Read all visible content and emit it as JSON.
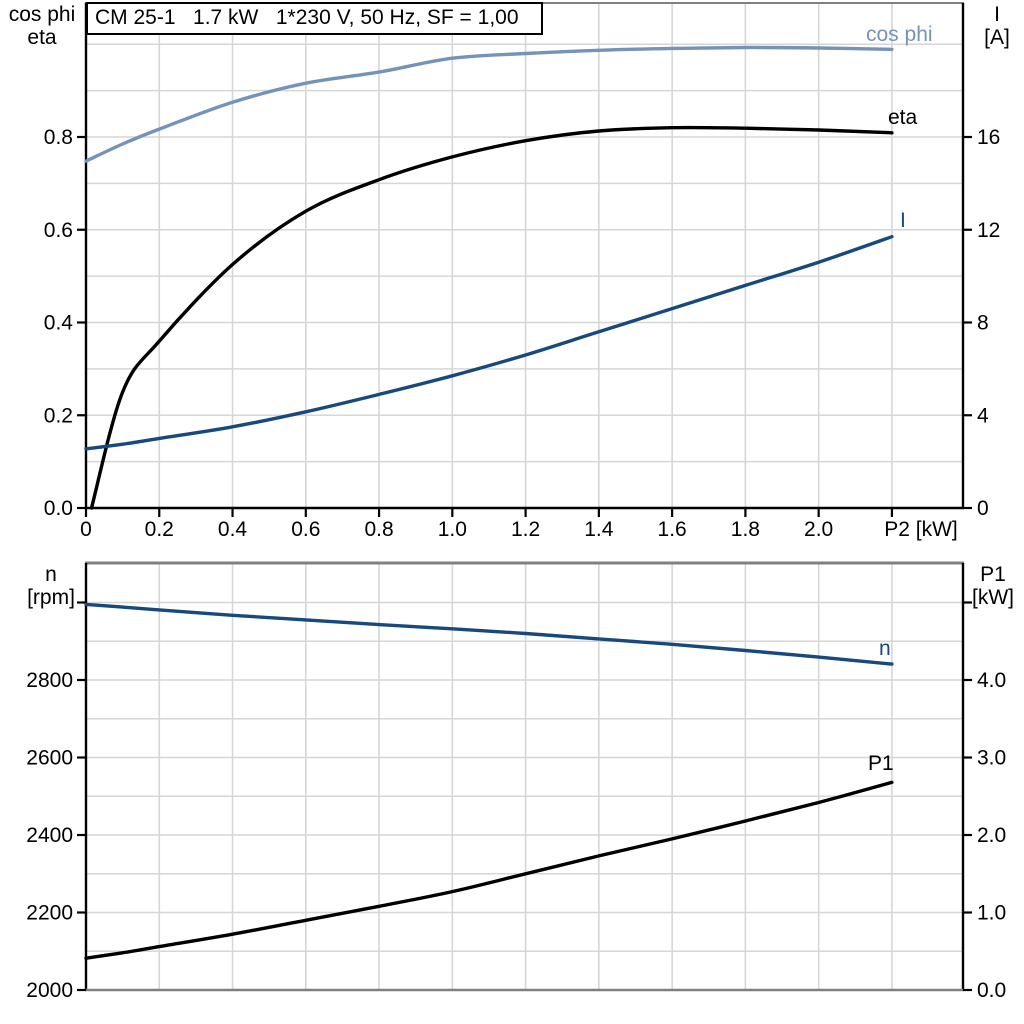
{
  "title": "CM 25-1   1.7 kW   1*230 V, 50 Hz, SF = 1,00",
  "colors": {
    "cos_phi_blue": "#7593B9",
    "dark_blue": "#17497D",
    "curve_black": "#000000",
    "gridline": "#D6D6D6",
    "frame_gray": "#808080"
  },
  "chart_data": [
    {
      "type": "line",
      "title": "CM 25-1   1.7 kW   1*230 V, 50 Hz, SF = 1,00",
      "x_label": "P2 [kW]",
      "x_ticks": {
        "values": [
          0,
          0.2,
          0.4,
          0.6,
          0.8,
          1.0,
          1.2,
          1.4,
          1.6,
          1.8,
          2.0
        ],
        "labels": [
          "0",
          "0.2",
          "0.4",
          "0.6",
          "0.8",
          "1.0",
          "1.2",
          "1.4",
          "1.6",
          "1.8",
          "2.0"
        ]
      },
      "left_axis": {
        "title_lines": [
          "cos phi",
          "eta"
        ],
        "tick_values": [
          0,
          0.2,
          0.4,
          0.6,
          0.8
        ],
        "tick_labels": [
          "0.0",
          "0.2",
          "0.4",
          "0.6",
          "0.8"
        ],
        "range": [
          0,
          1.089
        ],
        "grid_step": 0.1
      },
      "right_axis": {
        "title_lines": [
          "I",
          "[A]"
        ],
        "tick_values": [
          0,
          4,
          8,
          12,
          16
        ],
        "tick_labels": [
          "0",
          "4",
          "8",
          "12",
          "16"
        ],
        "range": [
          0,
          21.8
        ]
      },
      "series": [
        {
          "name": "cos phi",
          "axis": "left",
          "color": "#7593B9",
          "points": [
            [
              0,
              0.748
            ],
            [
              0.1,
              0.785
            ],
            [
              0.2,
              0.817
            ],
            [
              0.4,
              0.875
            ],
            [
              0.6,
              0.916
            ],
            [
              0.8,
              0.94
            ],
            [
              1.0,
              0.97
            ],
            [
              1.2,
              0.98
            ],
            [
              1.4,
              0.987
            ],
            [
              1.6,
              0.991
            ],
            [
              1.8,
              0.993
            ],
            [
              2.0,
              0.992
            ],
            [
              2.2,
              0.989
            ]
          ]
        },
        {
          "name": "eta",
          "axis": "left",
          "color": "#000000",
          "points": [
            [
              0.015,
              0.0
            ],
            [
              0.1,
              0.25
            ],
            [
              0.2,
              0.36
            ],
            [
              0.4,
              0.525
            ],
            [
              0.6,
              0.64
            ],
            [
              0.8,
              0.708
            ],
            [
              1.0,
              0.757
            ],
            [
              1.2,
              0.792
            ],
            [
              1.4,
              0.813
            ],
            [
              1.6,
              0.82
            ],
            [
              1.8,
              0.819
            ],
            [
              2.0,
              0.815
            ],
            [
              2.2,
              0.809
            ]
          ]
        },
        {
          "name": "I",
          "axis": "right",
          "color": "#17497D",
          "points": [
            [
              0,
              2.55
            ],
            [
              0.1,
              2.75
            ],
            [
              0.2,
              3.0
            ],
            [
              0.4,
              3.5
            ],
            [
              0.6,
              4.15
            ],
            [
              0.8,
              4.9
            ],
            [
              1.0,
              5.7
            ],
            [
              1.2,
              6.6
            ],
            [
              1.4,
              7.6
            ],
            [
              1.6,
              8.6
            ],
            [
              1.8,
              9.6
            ],
            [
              2.0,
              10.6
            ],
            [
              2.2,
              11.7
            ]
          ]
        }
      ]
    },
    {
      "type": "line",
      "x_label": "",
      "left_axis": {
        "title_lines": [
          "n",
          "[rpm]"
        ],
        "tick_values": [
          2000,
          2200,
          2400,
          2600,
          2800
        ],
        "tick_labels": [
          "2000",
          "2200",
          "2400",
          "2600",
          "2800"
        ],
        "range": [
          2000,
          3102
        ],
        "grid_step": 100
      },
      "right_axis": {
        "title_lines": [
          "P1",
          "[kW]"
        ],
        "tick_values": [
          0.0,
          1.0,
          2.0,
          3.0,
          4.0
        ],
        "tick_labels": [
          "0.0",
          "1.0",
          "2.0",
          "3.0",
          "4.0"
        ],
        "range": [
          0,
          5.51
        ]
      },
      "series": [
        {
          "name": "n",
          "axis": "left",
          "color": "#17497D",
          "points": [
            [
              0,
              2995
            ],
            [
              0.1,
              2988
            ],
            [
              0.2,
              2981
            ],
            [
              0.4,
              2967
            ],
            [
              0.6,
              2955
            ],
            [
              0.8,
              2943
            ],
            [
              1.0,
              2932
            ],
            [
              1.2,
              2920
            ],
            [
              1.4,
              2906
            ],
            [
              1.6,
              2892
            ],
            [
              1.8,
              2876
            ],
            [
              2.0,
              2859
            ],
            [
              2.2,
              2841
            ]
          ]
        },
        {
          "name": "P1",
          "axis": "right",
          "color": "#000000",
          "points": [
            [
              0,
              0.41
            ],
            [
              0.1,
              0.48
            ],
            [
              0.2,
              0.56
            ],
            [
              0.4,
              0.72
            ],
            [
              0.6,
              0.9
            ],
            [
              0.8,
              1.08
            ],
            [
              1.0,
              1.27
            ],
            [
              1.2,
              1.5
            ],
            [
              1.4,
              1.73
            ],
            [
              1.6,
              1.95
            ],
            [
              1.8,
              2.18
            ],
            [
              2.0,
              2.42
            ],
            [
              2.2,
              2.68
            ]
          ]
        }
      ]
    }
  ]
}
